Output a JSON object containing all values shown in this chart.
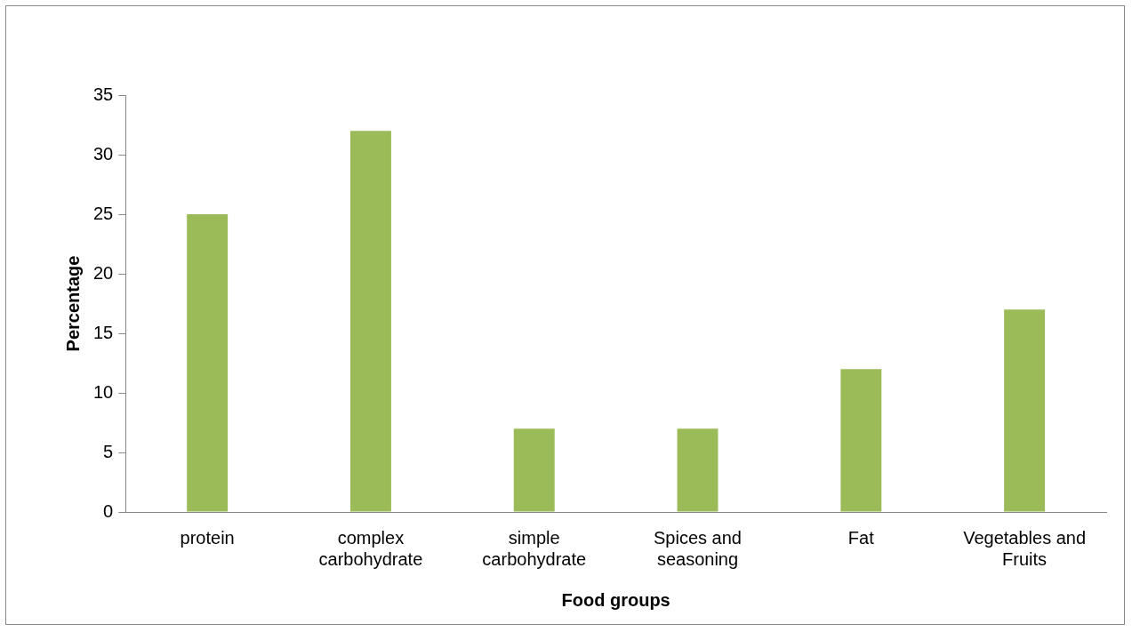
{
  "chart_data": {
    "type": "bar",
    "xlabel": "Food groups",
    "ylabel": "Percentage",
    "categories": [
      "protein",
      "complex carbohydrate",
      "simple carbohydrate",
      "Spices and seasoning",
      "Fat",
      "Vegetables and Fruits"
    ],
    "values": [
      25,
      32,
      7,
      7,
      12,
      17
    ],
    "color": "#9bbb59",
    "ylim": [
      0,
      35
    ],
    "yticks": [
      0,
      5,
      10,
      15,
      20,
      25,
      30,
      35
    ],
    "grid": false,
    "legend": false
  }
}
